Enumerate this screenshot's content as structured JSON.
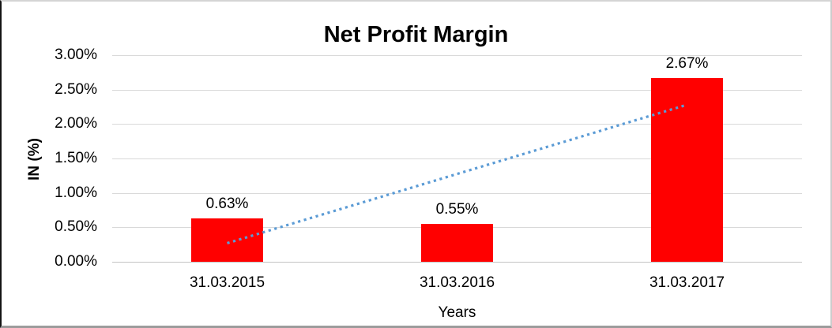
{
  "chart_data": {
    "type": "bar",
    "title": "Net Profit Margin",
    "xlabel": "Years",
    "ylabel": "IN (%)",
    "categories": [
      "31.03.2015",
      "31.03.2016",
      "31.03.2017"
    ],
    "values": [
      0.63,
      0.55,
      2.67
    ],
    "value_labels": [
      "0.63%",
      "0.55%",
      "2.67%"
    ],
    "ylim": [
      0,
      3.0
    ],
    "ytick_step": 0.5,
    "yticks": [
      "0.00%",
      "0.50%",
      "1.00%",
      "1.50%",
      "2.00%",
      "2.50%",
      "3.00%"
    ],
    "grid": true,
    "legend": "none",
    "bar_color": "#ff0000",
    "gridline_color": "#d9d9d9",
    "trendline": {
      "style": "dotted",
      "color": "#5b9bd5",
      "start_value": 0.27,
      "end_value": 2.28
    }
  }
}
